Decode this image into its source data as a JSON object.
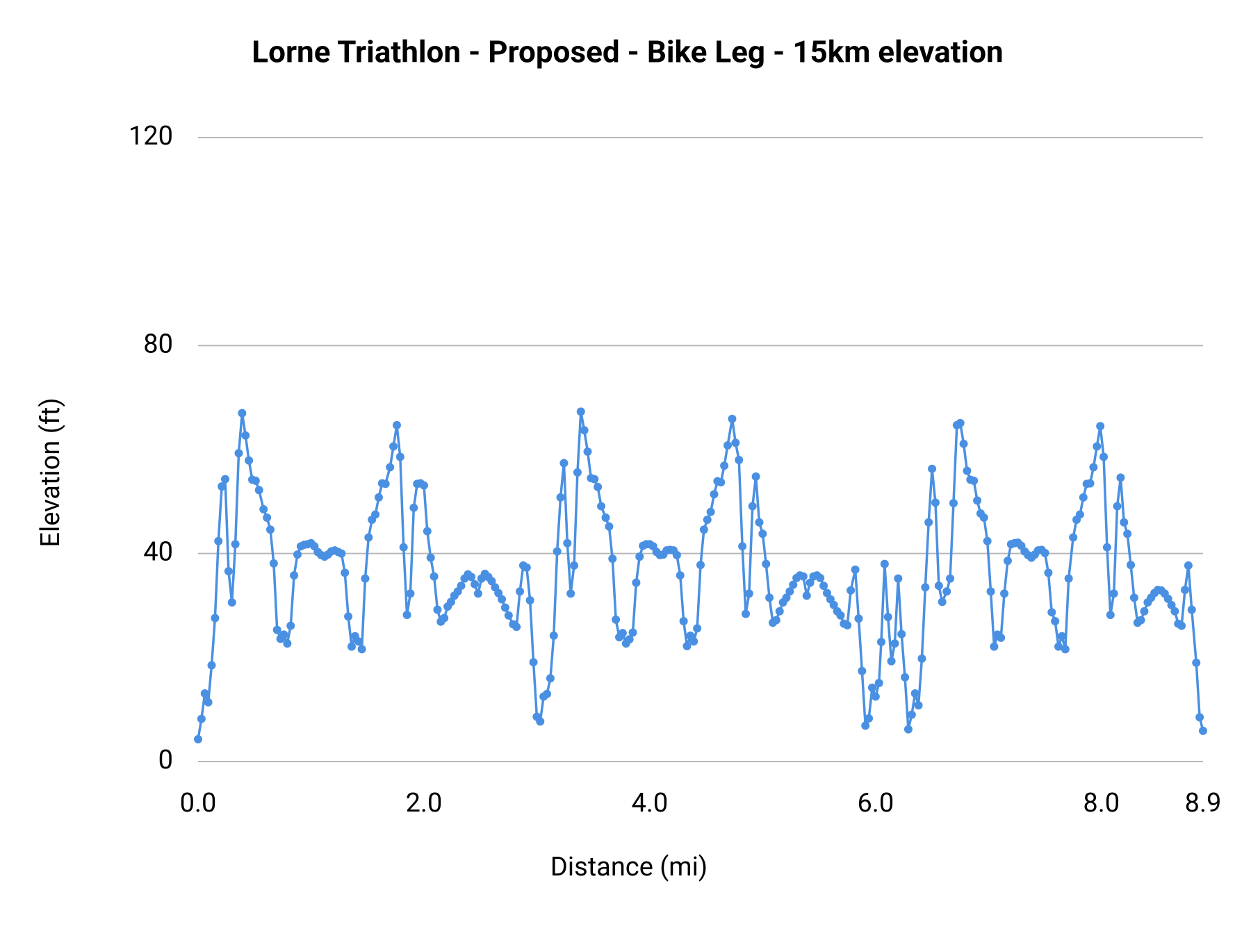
{
  "chart_data": {
    "type": "line",
    "title": "Lorne Triathlon - Proposed  - Bike Leg - 15km elevation",
    "x_label": "Distance (mi)",
    "y_label": "Elevation (ft)",
    "color": "#4a90e2",
    "markers": true,
    "grid": true,
    "xlim": [
      0,
      8.9
    ],
    "ylim": [
      0,
      120
    ],
    "xticks": [
      {
        "value": 0,
        "label": "0.0"
      },
      {
        "value": 2,
        "label": "2.0"
      },
      {
        "value": 4,
        "label": "4.0"
      },
      {
        "value": 6,
        "label": "6.0"
      },
      {
        "value": 8,
        "label": "8.0"
      },
      8.9
    ],
    "yticks": [
      0,
      40,
      80,
      120
    ],
    "x": [
      0,
      0.03,
      0.06,
      0.09,
      0.12,
      0.15,
      0.18,
      0.21,
      0.24,
      0.27,
      0.3,
      0.33,
      0.36,
      0.39,
      0.42,
      0.45,
      0.48,
      0.51,
      0.54,
      0.58,
      0.61,
      0.64,
      0.67,
      0.7,
      0.73,
      0.76,
      0.79,
      0.82,
      0.85,
      0.88,
      0.91,
      0.94,
      0.97,
      1,
      1.03,
      1.06,
      1.09,
      1.12,
      1.15,
      1.18,
      1.21,
      1.24,
      1.27,
      1.3,
      1.33,
      1.36,
      1.39,
      1.42,
      1.45,
      1.48,
      1.51,
      1.54,
      1.57,
      1.6,
      1.63,
      1.66,
      1.7,
      1.73,
      1.76,
      1.79,
      1.82,
      1.85,
      1.88,
      1.91,
      1.94,
      1.97,
      2,
      2.03,
      2.06,
      2.09,
      2.12,
      2.15,
      2.18,
      2.21,
      2.24,
      2.27,
      2.3,
      2.33,
      2.36,
      2.39,
      2.42,
      2.45,
      2.48,
      2.51,
      2.54,
      2.57,
      2.6,
      2.63,
      2.66,
      2.69,
      2.72,
      2.75,
      2.79,
      2.82,
      2.85,
      2.88,
      2.91,
      2.94,
      2.97,
      3,
      3.03,
      3.06,
      3.09,
      3.12,
      3.15,
      3.18,
      3.21,
      3.24,
      3.27,
      3.3,
      3.33,
      3.36,
      3.39,
      3.42,
      3.45,
      3.48,
      3.51,
      3.54,
      3.57,
      3.61,
      3.64,
      3.67,
      3.7,
      3.73,
      3.76,
      3.79,
      3.82,
      3.85,
      3.88,
      3.91,
      3.94,
      3.97,
      4,
      4.03,
      4.06,
      4.09,
      4.12,
      4.15,
      4.18,
      4.21,
      4.24,
      4.27,
      4.3,
      4.33,
      4.36,
      4.39,
      4.42,
      4.45,
      4.48,
      4.51,
      4.54,
      4.57,
      4.6,
      4.63,
      4.66,
      4.69,
      4.73,
      4.76,
      4.79,
      4.82,
      4.85,
      4.88,
      4.91,
      4.94,
      4.97,
      5,
      5.03,
      5.06,
      5.09,
      5.12,
      5.15,
      5.18,
      5.21,
      5.24,
      5.27,
      5.3,
      5.33,
      5.36,
      5.39,
      5.42,
      5.45,
      5.48,
      5.51,
      5.54,
      5.57,
      5.6,
      5.63,
      5.66,
      5.69,
      5.72,
      5.75,
      5.78,
      5.82,
      5.85,
      5.88,
      5.91,
      5.94,
      5.97,
      6,
      6.03,
      6.05,
      6.08,
      6.11,
      6.14,
      6.17,
      6.2,
      6.23,
      6.26,
      6.29,
      6.32,
      6.35,
      6.38,
      6.41,
      6.44,
      6.47,
      6.5,
      6.53,
      6.56,
      6.59,
      6.63,
      6.66,
      6.69,
      6.72,
      6.75,
      6.78,
      6.81,
      6.84,
      6.87,
      6.9,
      6.93,
      6.96,
      6.99,
      7.02,
      7.05,
      7.08,
      7.11,
      7.14,
      7.17,
      7.2,
      7.23,
      7.26,
      7.29,
      7.32,
      7.35,
      7.38,
      7.41,
      7.44,
      7.47,
      7.5,
      7.53,
      7.56,
      7.59,
      7.62,
      7.65,
      7.68,
      7.71,
      7.75,
      7.78,
      7.81,
      7.84,
      7.87,
      7.9,
      7.93,
      7.96,
      7.99,
      8.02,
      8.05,
      8.08,
      8.11,
      8.14,
      8.17,
      8.2,
      8.23,
      8.26,
      8.29,
      8.32,
      8.35,
      8.38,
      8.41,
      8.44,
      8.47,
      8.5,
      8.53,
      8.56,
      8.59,
      8.62,
      8.65,
      8.68,
      8.71,
      8.74,
      8.77,
      8.8,
      8.84,
      8.87,
      8.9
    ],
    "values": [
      4.3,
      8.2,
      13.1,
      11.4,
      18.5,
      27.6,
      42.4,
      52.9,
      54.3,
      36.6,
      30.6,
      41.8,
      59.3,
      67.0,
      62.7,
      57.9,
      54.2,
      54.0,
      52.2,
      48.5,
      46.9,
      44.6,
      38.1,
      25.3,
      23.6,
      24.4,
      22.7,
      26.1,
      35.8,
      39.8,
      41.4,
      41.7,
      41.8,
      42.0,
      41.4,
      40.3,
      39.7,
      39.4,
      39.8,
      40.4,
      40.6,
      40.3,
      40.0,
      36.3,
      27.9,
      22.1,
      24.1,
      23.1,
      21.6,
      35.2,
      43.1,
      46.5,
      47.5,
      50.8,
      53.5,
      53.4,
      56.6,
      60.6,
      64.7,
      58.6,
      41.2,
      28.2,
      32.3,
      48.8,
      53.4,
      53.5,
      53.1,
      44.3,
      39.2,
      35.6,
      29.2,
      26.9,
      27.6,
      29.8,
      30.7,
      31.9,
      32.7,
      33.8,
      35.2,
      36.0,
      35.5,
      34.1,
      32.3,
      35.2,
      36.1,
      35.5,
      34.7,
      33.5,
      32.4,
      31.2,
      29.6,
      28.1,
      26.4,
      25.9,
      32.7,
      37.7,
      37.3,
      31.0,
      19.1,
      8.6,
      7.7,
      12.5,
      13.0,
      16.0,
      24.2,
      40.4,
      50.8,
      57.4,
      42.0,
      32.3,
      37.7,
      55.6,
      67.3,
      63.7,
      59.6,
      54.5,
      54.3,
      52.8,
      49.1,
      46.9,
      45.2,
      39.0,
      27.3,
      23.9,
      24.7,
      22.7,
      23.5,
      24.8,
      34.4,
      39.4,
      41.5,
      41.8,
      41.8,
      41.4,
      40.3,
      39.7,
      39.8,
      40.6,
      40.7,
      40.6,
      39.7,
      35.8,
      27.0,
      22.2,
      24.2,
      23.1,
      25.6,
      37.8,
      44.6,
      46.5,
      48.0,
      51.4,
      53.9,
      53.7,
      56.9,
      60.8,
      65.9,
      61.3,
      58.0,
      41.4,
      28.4,
      32.3,
      49.1,
      54.8,
      46.0,
      43.8,
      38.0,
      31.5,
      26.7,
      27.2,
      28.9,
      30.6,
      31.5,
      32.7,
      34.0,
      35.3,
      35.8,
      35.6,
      31.9,
      34.4,
      35.6,
      35.8,
      35.3,
      33.8,
      32.4,
      31.2,
      30.1,
      28.9,
      28.1,
      26.5,
      26.2,
      32.9,
      36.9,
      27.5,
      17.4,
      6.9,
      8.3,
      14.2,
      12.5,
      15.1,
      23.0,
      38.0,
      27.8,
      19.3,
      22.7,
      35.2,
      24.5,
      16.2,
      6.2,
      9.0,
      13.1,
      10.8,
      19.8,
      33.5,
      46.0,
      56.3,
      49.8,
      33.8,
      30.7,
      32.7,
      35.2,
      49.7,
      64.7,
      65.1,
      61.1,
      55.9,
      54.2,
      54.0,
      50.2,
      47.7,
      46.9,
      42.4,
      32.7,
      22.1,
      24.4,
      23.8,
      32.3,
      38.6,
      41.8,
      42.0,
      42.1,
      41.5,
      40.4,
      39.7,
      39.2,
      39.8,
      40.6,
      40.7,
      40.1,
      36.3,
      28.7,
      27.0,
      22.1,
      24.1,
      21.6,
      35.2,
      43.1,
      46.5,
      47.5,
      50.8,
      53.4,
      53.5,
      56.6,
      60.6,
      64.5,
      58.6,
      41.2,
      28.2,
      32.3,
      49.1,
      54.6,
      46.0,
      43.8,
      37.8,
      31.5,
      26.7,
      27.2,
      28.9,
      30.6,
      31.5,
      32.4,
      33.0,
      32.9,
      32.3,
      31.3,
      30.1,
      28.9,
      26.5,
      26.1,
      33.0,
      37.7,
      29.2,
      19.0,
      8.5,
      5.9
    ]
  }
}
